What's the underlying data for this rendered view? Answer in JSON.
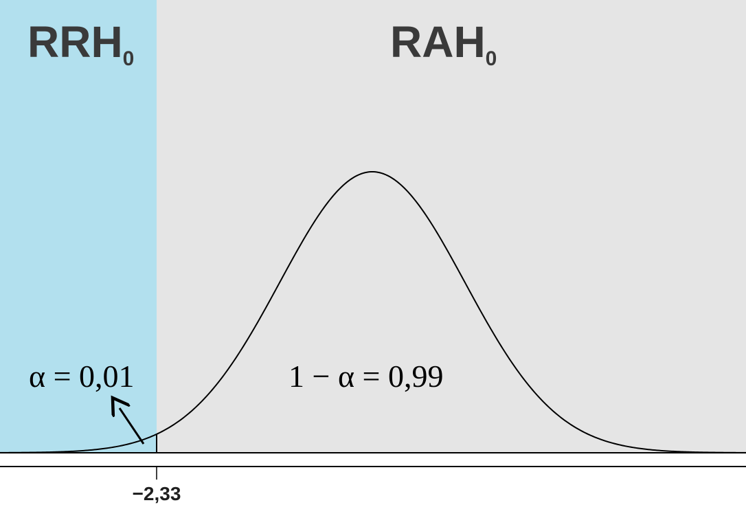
{
  "regions": {
    "reject": {
      "label": "RRH",
      "subscript": "0",
      "color": "#b2e0ee"
    },
    "accept": {
      "label": "RAH",
      "subscript": "0",
      "color": "#e5e5e5"
    }
  },
  "annotations": {
    "alpha": "α = 0,01",
    "one_minus_alpha": "1 − α = 0,99"
  },
  "critical_value": {
    "label": "−2,33",
    "value": -2.33
  },
  "curve": {
    "type": "normal",
    "color": "#000000"
  }
}
